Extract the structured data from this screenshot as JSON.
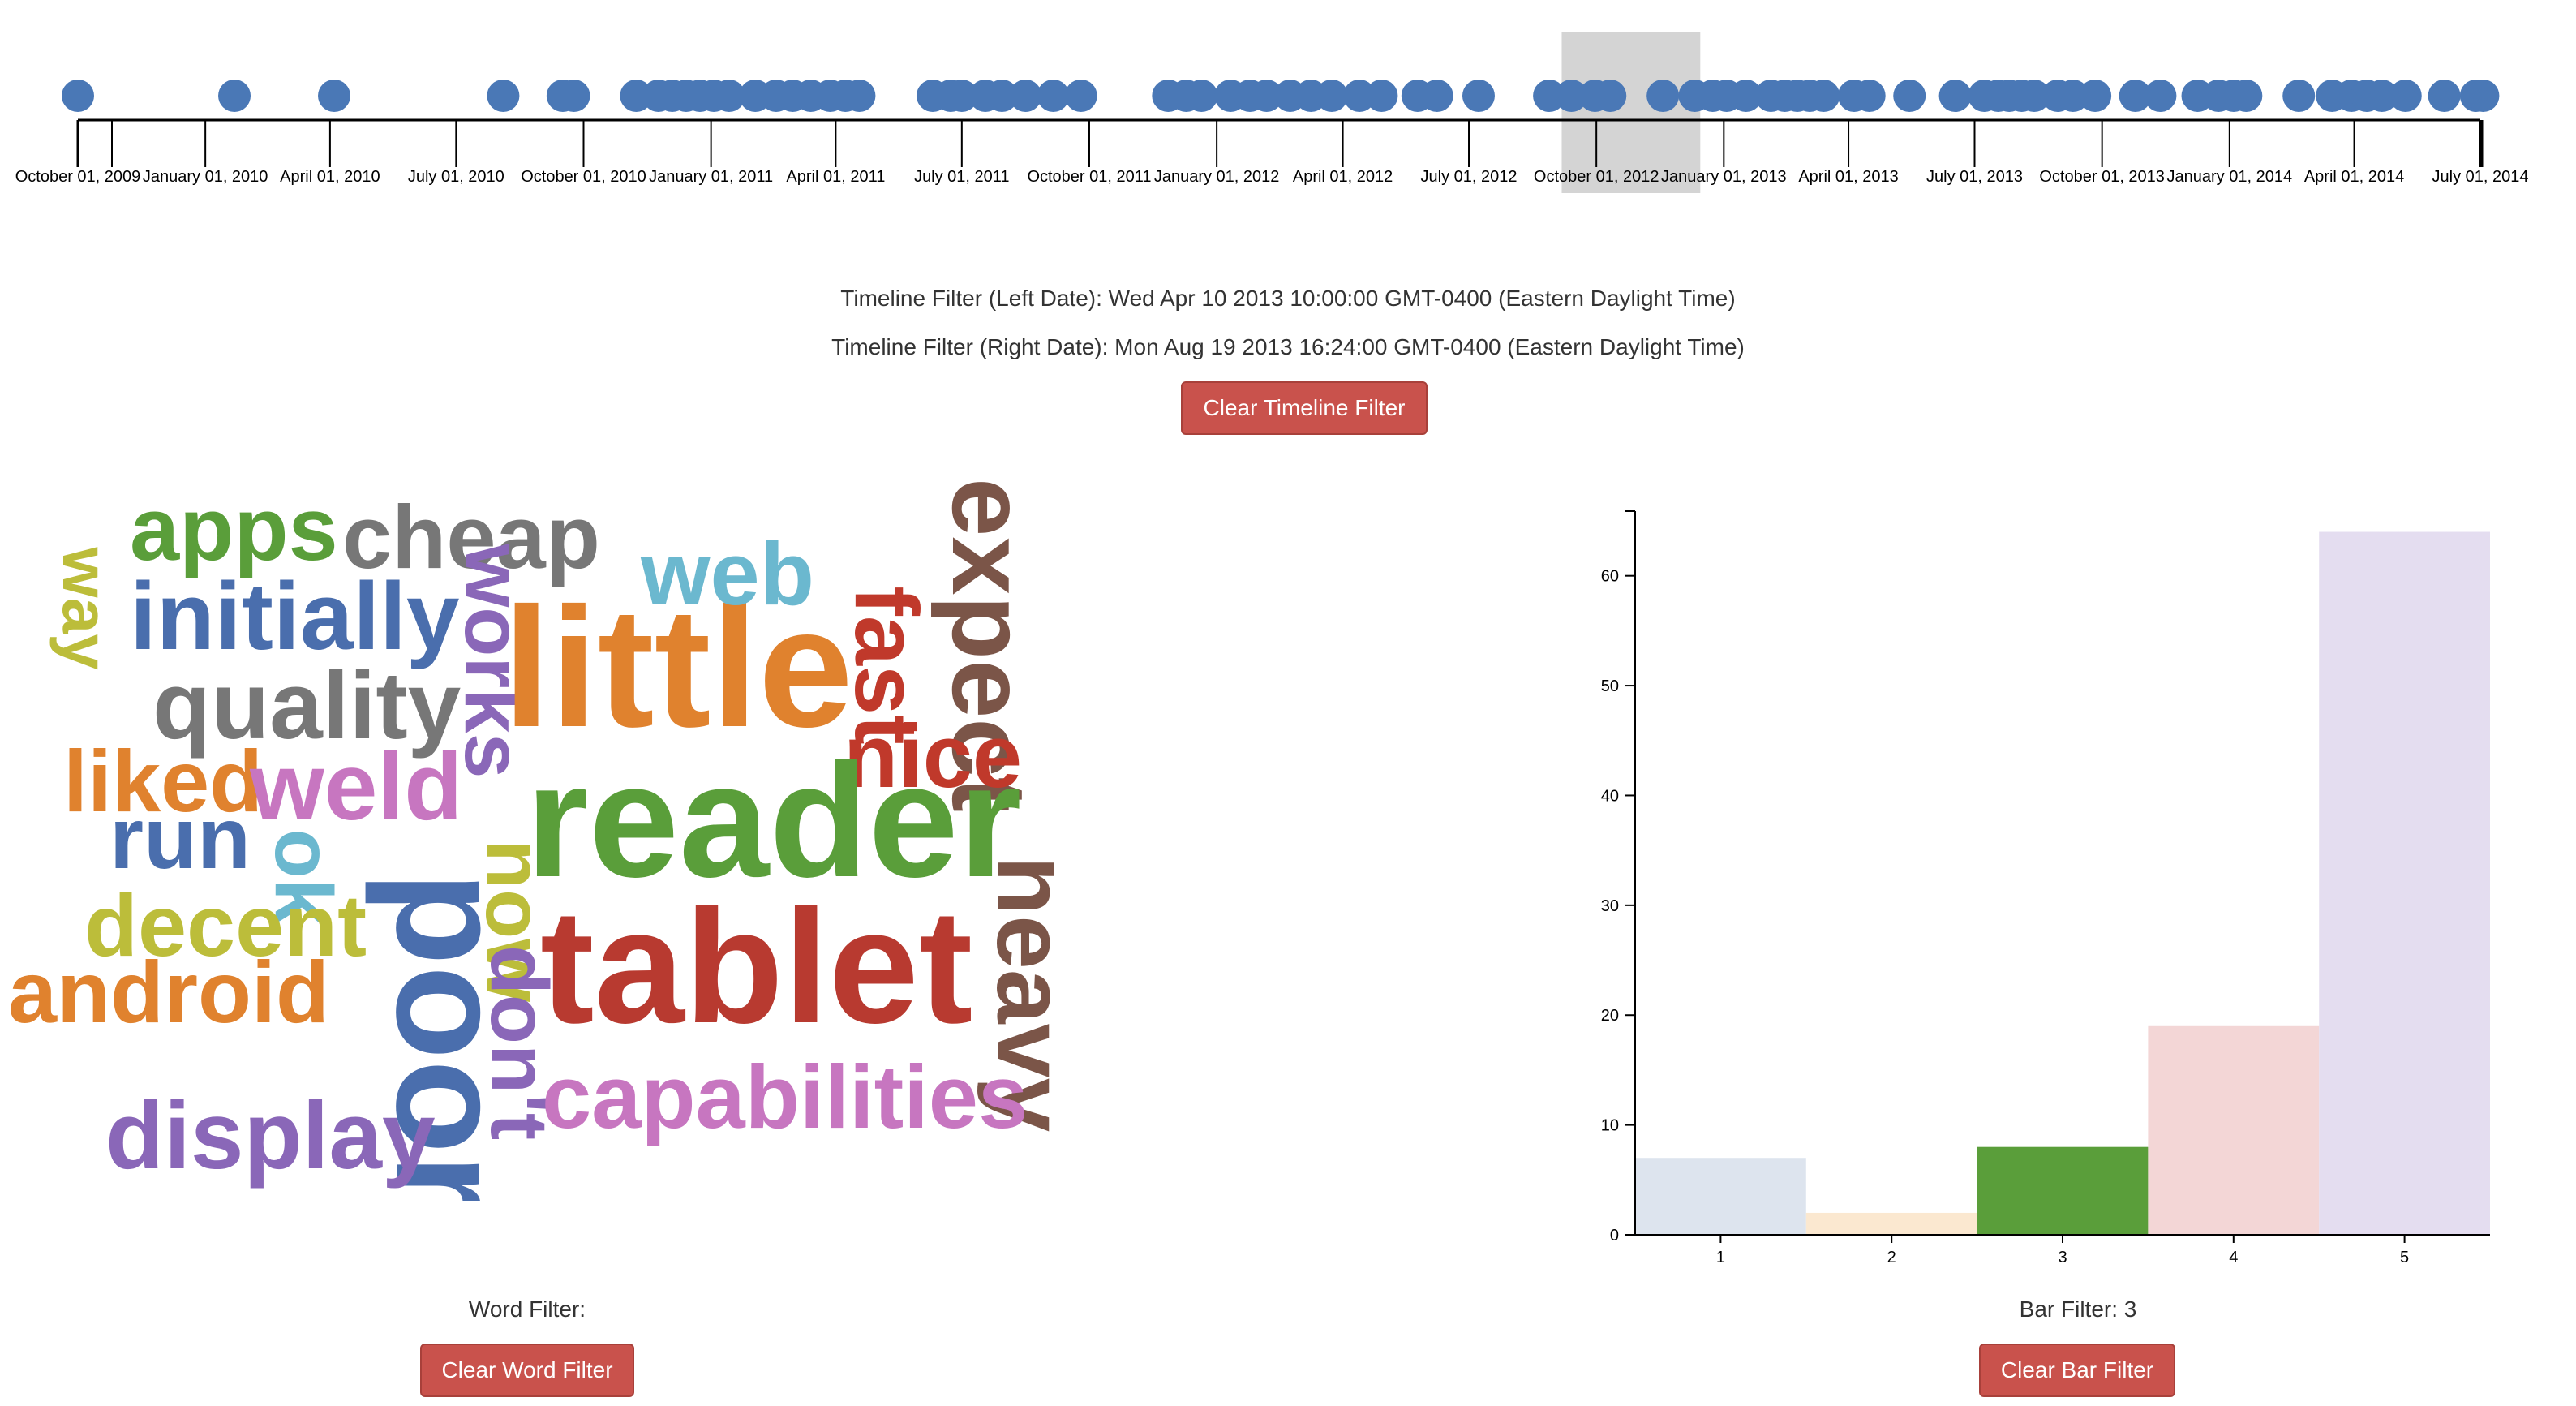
{
  "timeline": {
    "axis_start": "2009-10-01",
    "axis_end": "2014-07-01",
    "tick_labels": [
      "October 01, 2009",
      "January 01, 2010",
      "April 01, 2010",
      "July 01, 2010",
      "October 01, 2010",
      "January 01, 2011",
      "April 01, 2011",
      "July 01, 2011",
      "October 01, 2011",
      "January 01, 2012",
      "April 01, 2012",
      "July 01, 2012",
      "October 01, 2012",
      "January 01, 2013",
      "April 01, 2013",
      "July 01, 2013",
      "October 01, 2013",
      "January 01, 2014",
      "April 01, 2014",
      "July 01, 2014"
    ],
    "tick_dates": [
      "2009-10-01",
      "2010-01-01",
      "2010-04-01",
      "2010-07-01",
      "2010-10-01",
      "2011-01-01",
      "2011-04-01",
      "2011-07-01",
      "2011-10-01",
      "2012-01-01",
      "2012-04-01",
      "2012-07-01",
      "2012-10-01",
      "2013-01-01",
      "2013-04-01",
      "2013-07-01",
      "2013-10-01",
      "2014-01-01",
      "2014-04-01",
      "2014-07-01"
    ],
    "point_dates": [
      "2009-10-01",
      "2010-01-22",
      "2010-04-04",
      "2010-08-04",
      "2010-09-16",
      "2010-09-24",
      "2010-11-08",
      "2010-11-24",
      "2010-12-04",
      "2010-12-14",
      "2010-12-24",
      "2011-01-03",
      "2011-01-14",
      "2011-02-02",
      "2011-02-17",
      "2011-03-01",
      "2011-03-14",
      "2011-03-28",
      "2011-04-08",
      "2011-04-18",
      "2011-06-10",
      "2011-06-23",
      "2011-07-01",
      "2011-07-18",
      "2011-07-30",
      "2011-08-16",
      "2011-09-05",
      "2011-09-25",
      "2011-11-27",
      "2011-12-10",
      "2011-12-21",
      "2012-01-11",
      "2012-01-25",
      "2012-02-06",
      "2012-02-23",
      "2012-03-09",
      "2012-03-24",
      "2012-04-13",
      "2012-04-29",
      "2012-05-25",
      "2012-06-08",
      "2012-07-08",
      "2012-08-28",
      "2012-09-13",
      "2012-09-30",
      "2012-10-11",
      "2012-11-18",
      "2012-12-11",
      "2012-12-24",
      "2013-01-03",
      "2013-01-17",
      "2013-02-04",
      "2013-02-14",
      "2013-02-23",
      "2013-03-04",
      "2013-03-14",
      "2013-04-05",
      "2013-04-16",
      "2013-05-15",
      "2013-06-17",
      "2013-07-08",
      "2013-07-18",
      "2013-07-26",
      "2013-08-04",
      "2013-08-13",
      "2013-08-30",
      "2013-09-10",
      "2013-09-26",
      "2013-10-25",
      "2013-11-12",
      "2013-12-09",
      "2013-12-24",
      "2014-01-04",
      "2014-01-13",
      "2014-02-20",
      "2014-03-16",
      "2014-03-30",
      "2014-04-10",
      "2014-04-21",
      "2014-05-08",
      "2014-06-05",
      "2014-06-28",
      "2014-07-03"
    ],
    "brush_start": "2012-09-06",
    "brush_end": "2012-12-15",
    "point_color": "#4a78b6",
    "brush_color": "#d4d4d4"
  },
  "filters": {
    "left_date_text": "Timeline Filter (Left Date): Wed Apr 10 2013 10:00:00 GMT-0400 (Eastern Daylight Time)",
    "right_date_text": "Timeline Filter (Right Date): Mon Aug 19 2013 16:24:00 GMT-0400 (Eastern Daylight Time)",
    "clear_timeline_label": "Clear Timeline Filter",
    "word_filter_text": "Word Filter:",
    "clear_word_label": "Clear Word Filter",
    "bar_filter_text": "Bar Filter: 3",
    "clear_bar_label": "Clear Bar Filter",
    "button_color": "#c9524c"
  },
  "wordcloud": {
    "words": [
      {
        "text": "apps",
        "color": "#5a9e3a"
      },
      {
        "text": "cheap",
        "color": "#777777"
      },
      {
        "text": "way",
        "color": "#bcbd3a"
      },
      {
        "text": "initially",
        "color": "#4a6ead"
      },
      {
        "text": "works",
        "color": "#8a67b8"
      },
      {
        "text": "little",
        "color": "#e0822e"
      },
      {
        "text": "web",
        "color": "#6bb8cf"
      },
      {
        "text": "fast",
        "color": "#c0392b"
      },
      {
        "text": "expect",
        "color": "#7b5548"
      },
      {
        "text": "quality",
        "color": "#777777"
      },
      {
        "text": "nice",
        "color": "#c0392b"
      },
      {
        "text": "liked",
        "color": "#e0822e"
      },
      {
        "text": "weld",
        "color": "#c776c0"
      },
      {
        "text": "run",
        "color": "#4a6ead"
      },
      {
        "text": "ok",
        "color": "#6bb8cf"
      },
      {
        "text": "poor",
        "color": "#4a6ead"
      },
      {
        "text": "now",
        "color": "#bcbd3a"
      },
      {
        "text": "reader",
        "color": "#5a9e3a"
      },
      {
        "text": "heavy",
        "color": "#7b5548"
      },
      {
        "text": "decent",
        "color": "#bcbd3a"
      },
      {
        "text": "tablet",
        "color": "#b83a30"
      },
      {
        "text": "android",
        "color": "#e0822e"
      },
      {
        "text": "don't",
        "color": "#8a67b8"
      },
      {
        "text": "capabilities",
        "color": "#c776c0"
      },
      {
        "text": "display",
        "color": "#8a67b8"
      }
    ]
  },
  "chart_data": {
    "type": "bar",
    "categories": [
      "1",
      "2",
      "3",
      "4",
      "5"
    ],
    "values": [
      7,
      2,
      8,
      19,
      64
    ],
    "colors": [
      "#dde4ee",
      "#fbe8d0",
      "#5a9e3a",
      "#f3d6d6",
      "#e4ddf0"
    ],
    "highlighted_category": "3",
    "ylim": [
      0,
      65
    ],
    "yticks": [
      0,
      10,
      20,
      30,
      40,
      50,
      60
    ],
    "title": "",
    "xlabel": "",
    "ylabel": ""
  }
}
